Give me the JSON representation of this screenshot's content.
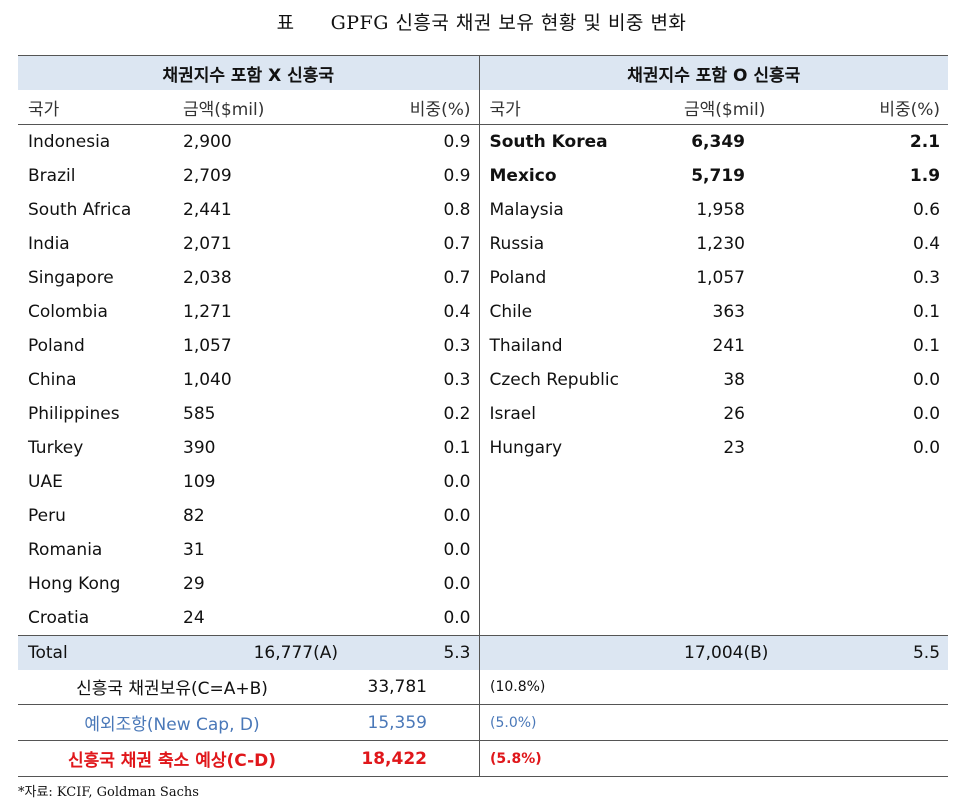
{
  "title": {
    "label": "표",
    "text": "GPFG 신흥국 채권 보유 현황 및 비중 변화"
  },
  "left": {
    "header": "채권지수 포함 X 신흥국",
    "cols": [
      "국가",
      "금액($mil)",
      "비중(%)"
    ],
    "rows": [
      [
        "Indonesia",
        "2,900",
        "0.9"
      ],
      [
        "Brazil",
        "2,709",
        "0.9"
      ],
      [
        "South Africa",
        "2,441",
        "0.8"
      ],
      [
        "India",
        "2,071",
        "0.7"
      ],
      [
        "Singapore",
        "2,038",
        "0.7"
      ],
      [
        "Colombia",
        "1,271",
        "0.4"
      ],
      [
        "Poland",
        "1,057",
        "0.3"
      ],
      [
        "China",
        "1,040",
        "0.3"
      ],
      [
        "Philippines",
        "585",
        "0.2"
      ],
      [
        "Turkey",
        "390",
        "0.1"
      ],
      [
        "UAE",
        "109",
        "0.0"
      ],
      [
        "Peru",
        "82",
        "0.0"
      ],
      [
        "Romania",
        "31",
        "0.0"
      ],
      [
        "Hong Kong",
        "29",
        "0.0"
      ],
      [
        "Croatia",
        "24",
        "0.0"
      ]
    ],
    "total": {
      "label": "Total",
      "amount": "16,777(A)",
      "pct": "5.3"
    }
  },
  "right": {
    "header": "채권지수 포함 O 신흥국",
    "cols": [
      "국가",
      "금액($mil)",
      "비중(%)"
    ],
    "rows": [
      [
        "South Korea",
        "6,349",
        "2.1"
      ],
      [
        "Mexico",
        "5,719",
        "1.9"
      ],
      [
        "Malaysia",
        "1,958",
        "0.6"
      ],
      [
        "Russia",
        "1,230",
        "0.4"
      ],
      [
        "Poland",
        "1,057",
        "0.3"
      ],
      [
        "Chile",
        "363",
        "0.1"
      ],
      [
        "Thailand",
        "241",
        "0.1"
      ],
      [
        "Czech Republic",
        "38",
        "0.0"
      ],
      [
        "Israel",
        "26",
        "0.0"
      ],
      [
        "Hungary",
        "23",
        "0.0"
      ]
    ],
    "bold_rows": [
      0,
      1
    ],
    "total": {
      "amount": "17,004(B)",
      "pct": "5.5"
    }
  },
  "summary": [
    {
      "label": "신흥국 채권보유(C=A+B)",
      "value": "33,781",
      "pct": "(10.8%)"
    },
    {
      "label": "예외조항(New Cap, D)",
      "value": "15,359",
      "pct": "(5.0%)"
    },
    {
      "label": "신흥국 채권 축소 예상(C-D)",
      "value": "18,422",
      "pct": "(5.8%)"
    }
  ],
  "source": "*자료: KCIF, Goldman Sachs",
  "colors": {
    "header_bg": "#dce6f2",
    "blue_text": "#4a78b8",
    "red_text": "#e0171b"
  }
}
